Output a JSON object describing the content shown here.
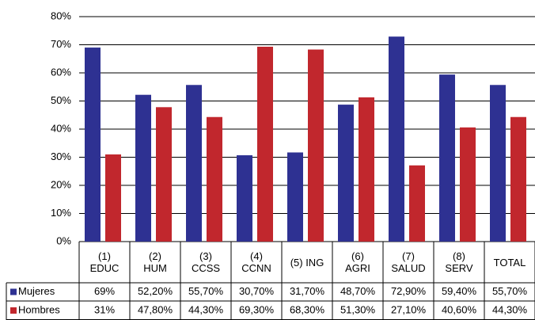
{
  "chart_data": {
    "type": "bar",
    "categories": [
      "(1) EDUC",
      "(2) HUM",
      "(3) CCSS",
      "(4) CCNN",
      "(5) ING",
      "(6) AGRI",
      "(7) SALUD",
      "(8) SERV",
      "TOTAL"
    ],
    "series": [
      {
        "name": "Mujeres",
        "color": "#2e3192",
        "values": [
          69,
          52.2,
          55.7,
          30.7,
          31.7,
          48.7,
          72.9,
          59.4,
          55.7
        ],
        "value_labels": [
          "69%",
          "52,20%",
          "55,70%",
          "30,70%",
          "31,70%",
          "48,70%",
          "72,90%",
          "59,40%",
          "55,70%"
        ]
      },
      {
        "name": "Hombres",
        "color": "#c1272d",
        "values": [
          31,
          47.8,
          44.3,
          69.3,
          68.3,
          51.3,
          27.1,
          40.6,
          44.3
        ],
        "value_labels": [
          "31%",
          "47,80%",
          "44,30%",
          "69,30%",
          "68,30%",
          "51,30%",
          "27,10%",
          "40,60%",
          "44,30%"
        ]
      }
    ],
    "ylim": [
      0,
      80
    ],
    "yticks": [
      {
        "value": 0,
        "label": "0%"
      },
      {
        "value": 10,
        "label": "10%"
      },
      {
        "value": 20,
        "label": "20%"
      },
      {
        "value": 30,
        "label": "30%"
      },
      {
        "value": 40,
        "label": "40%"
      },
      {
        "value": 50,
        "label": "50%"
      },
      {
        "value": 60,
        "label": "60%"
      },
      {
        "value": 70,
        "label": "70%"
      },
      {
        "value": 80,
        "label": "80%"
      }
    ],
    "grid": true,
    "legend": "table"
  }
}
